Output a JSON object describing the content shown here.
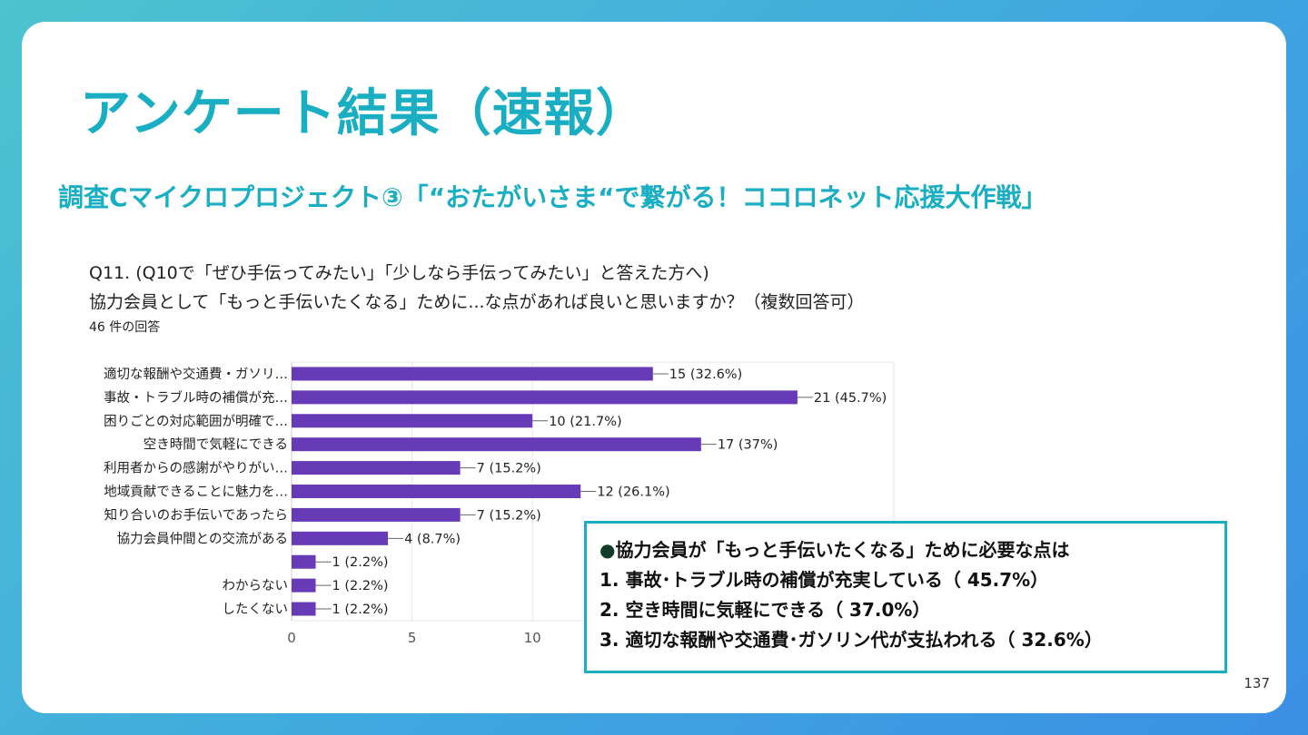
{
  "slide": {
    "title": "アンケート結果（速報）",
    "subtitle": "調査Cマイクロプロジェクト③「“おたがいさま“で繋がる！ココロネット応援大作戦」",
    "page_number": "137"
  },
  "survey": {
    "question_line1": "Q11. (Q10で「ぜひ手伝ってみたい」「少しなら手伝ってみたい」と答えた方へ)",
    "question_line2": "協力会員として「もっと手伝いたくなる」ために...な点があれば良いと思いますか？（複数回答可）",
    "responses": "46 件の回答"
  },
  "summary": {
    "heading_bullet": "●",
    "heading": "協力会員が「もっと手伝いたくなる」ために必要な点は",
    "items": [
      "1. 事故･トラブル時の補償が充実している（ 45.7%）",
      "2. 空き時間に気軽にできる（ 37.0%）",
      "3. 適切な報酬や交通費･ガソリン代が支払われる（ 32.6%）"
    ]
  },
  "colors": {
    "accent": "#1aaec3",
    "bar": "#673ab7"
  },
  "chart_data": {
    "type": "bar",
    "orientation": "horizontal",
    "categories": [
      "適切な報酬や交通費・ガソリ…",
      "事故・トラブル時の補償が充…",
      "困りごとの対応範囲が明確で…",
      "空き時間で気軽にできる",
      "利用者からの感謝がやりがい…",
      "地域貢献できることに魅力を…",
      "知り合いのお手伝いであったら",
      "協力会員仲間との交流がある",
      "",
      "わからない",
      "したくない"
    ],
    "values": [
      15,
      21,
      10,
      17,
      7,
      12,
      7,
      4,
      1,
      1,
      1
    ],
    "data_labels": [
      "15 (32.6%)",
      "21 (45.7%)",
      "10 (21.7%)",
      "17 (37%)",
      "7 (15.2%)",
      "12 (26.1%)",
      "7 (15.2%)",
      "4 (8.7%)",
      "1 (2.2%)",
      "1 (2.2%)",
      "1 (2.2%)"
    ],
    "x_ticks": [
      0,
      5,
      10
    ],
    "xlim": [
      0,
      25
    ],
    "grid": true,
    "title": "",
    "xlabel": "",
    "ylabel": ""
  }
}
